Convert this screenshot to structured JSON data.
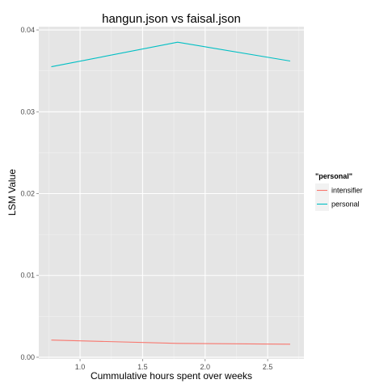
{
  "chart_data": {
    "type": "line",
    "title": "hangun.json vs faisal.json",
    "xlabel": "Cummulative hours spent over weeks",
    "ylabel": "LSM Value",
    "xlim": [
      0.67,
      2.79
    ],
    "ylim": [
      -0.0002,
      0.0404
    ],
    "x_ticks": [
      1.0,
      1.5,
      2.0,
      2.5
    ],
    "x_tick_labels": [
      "1.0",
      "1.5",
      "2.0",
      "2.5"
    ],
    "y_ticks": [
      0.0,
      0.01,
      0.02,
      0.03,
      0.04
    ],
    "y_tick_labels": [
      "0.00",
      "0.01",
      "0.02",
      "0.03",
      "0.04"
    ],
    "grid": true,
    "legend": {
      "title": "\"personal\"",
      "position": "right"
    },
    "series": [
      {
        "name": "intensifier",
        "color": "#F8766D",
        "x": [
          0.77,
          1.78,
          2.68
        ],
        "y": [
          0.0021,
          0.0017,
          0.0016
        ]
      },
      {
        "name": "personal",
        "color": "#00BFC4",
        "x": [
          0.77,
          1.78,
          2.68
        ],
        "y": [
          0.0355,
          0.0385,
          0.0362
        ]
      }
    ],
    "colors": {
      "panel_background": "#E5E5E5",
      "grid_major": "#FFFFFF",
      "grid_minor": "#F2F2F2",
      "legend_key_background": "#F2F2F2"
    }
  }
}
